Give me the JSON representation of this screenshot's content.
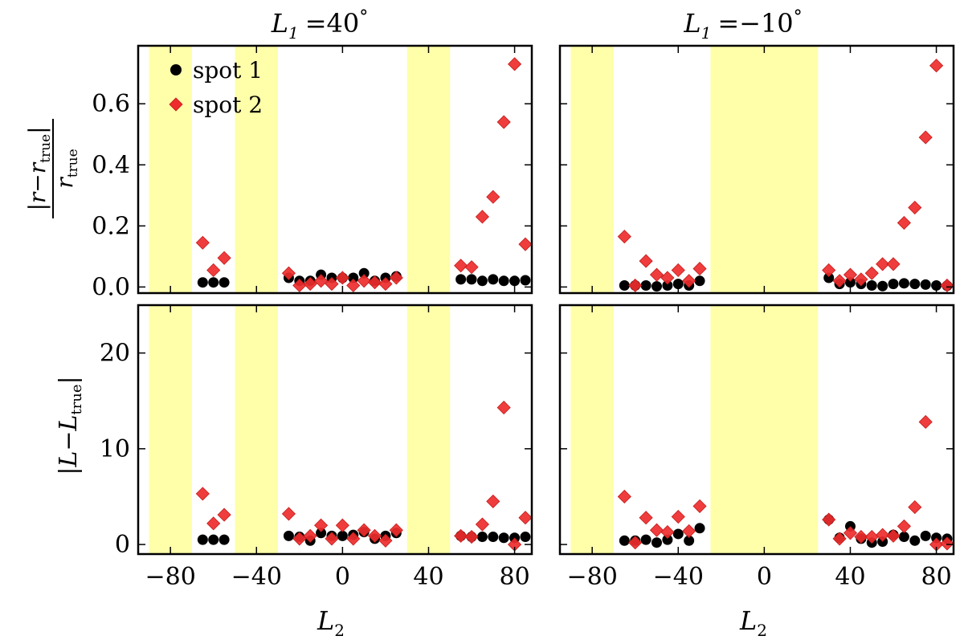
{
  "figure": {
    "xlabel_main": "L",
    "xlabel_sub": "2"
  },
  "columns": [
    {
      "title_var": "L",
      "title_sub": "1",
      "title_eq": "=",
      "title_val": "40",
      "title_deg": "°"
    },
    {
      "title_var": "L",
      "title_sub": "1",
      "title_eq": "=",
      "title_val": "−10",
      "title_deg": "°"
    }
  ],
  "row_labels": [
    {
      "num_main": "r",
      "num_minus": "−",
      "num_var": "r",
      "num_sub": "true",
      "den_var": "r",
      "den_sub": "true"
    },
    {
      "main": "L",
      "minus": "−",
      "var": "L",
      "sub": "true"
    }
  ],
  "legend": {
    "items": [
      {
        "label": "spot 1",
        "color": "#000000",
        "marker": "circle"
      },
      {
        "label": "spot 2",
        "color": "#ee2c2c",
        "marker": "diamond"
      }
    ]
  },
  "colors": {
    "band": "#ffffaa",
    "spot1": "#000000",
    "spot2": "#ee2c2c",
    "axis": "#000000"
  },
  "chart_data": [
    {
      "type": "scatter",
      "panel": "top-left",
      "title": "L1 = 40°",
      "xlabel": "",
      "ylabel": "|r − r_true| / r_true",
      "xlim": [
        -95,
        88
      ],
      "ylim": [
        -0.02,
        0.79
      ],
      "xticks": [
        -80,
        -40,
        0,
        40,
        80
      ],
      "xtick_labels": [],
      "yticks": [
        0.0,
        0.2,
        0.4,
        0.6
      ],
      "ytick_labels": [
        "0.0",
        "0.2",
        "0.4",
        "0.6"
      ],
      "shaded_bands": [
        [
          -90,
          -70
        ],
        [
          -50,
          -30
        ],
        [
          30,
          50
        ]
      ],
      "series": [
        {
          "name": "spot 1",
          "x": [
            -65,
            -60,
            -55,
            -25,
            -20,
            -15,
            -10,
            -5,
            0,
            5,
            10,
            15,
            20,
            25,
            55,
            60,
            65,
            70,
            75,
            80,
            85
          ],
          "y": [
            0.015,
            0.015,
            0.015,
            0.03,
            0.02,
            0.02,
            0.04,
            0.03,
            0.03,
            0.03,
            0.045,
            0.02,
            0.03,
            0.035,
            0.025,
            0.025,
            0.02,
            0.025,
            0.02,
            0.02,
            0.022
          ]
        },
        {
          "name": "spot 2",
          "x": [
            -65,
            -60,
            -55,
            -25,
            -20,
            -15,
            -10,
            -5,
            0,
            5,
            10,
            15,
            20,
            25,
            55,
            60,
            65,
            70,
            75,
            80,
            85
          ],
          "y": [
            0.145,
            0.055,
            0.095,
            0.045,
            0.005,
            0.01,
            0.02,
            0.01,
            0.03,
            0.005,
            0.02,
            0.015,
            0.01,
            0.03,
            0.07,
            0.065,
            0.23,
            0.295,
            0.54,
            0.73,
            0.14
          ]
        }
      ]
    },
    {
      "type": "scatter",
      "panel": "top-right",
      "title": "L1 = −10°",
      "xlabel": "",
      "ylabel": "",
      "xlim": [
        -95,
        88
      ],
      "ylim": [
        -0.02,
        0.79
      ],
      "xticks": [
        -80,
        -40,
        0,
        40,
        80
      ],
      "xtick_labels": [],
      "yticks": [
        0.0,
        0.2,
        0.4,
        0.6
      ],
      "ytick_labels": [],
      "shaded_bands": [
        [
          -90,
          -70
        ],
        [
          -25,
          25
        ]
      ],
      "series": [
        {
          "name": "spot 1",
          "x": [
            -65,
            -60,
            -55,
            -50,
            -45,
            -40,
            -35,
            -30,
            30,
            35,
            40,
            45,
            50,
            55,
            60,
            65,
            70,
            75,
            80,
            85
          ],
          "y": [
            0.005,
            0.005,
            0.005,
            0.002,
            0.005,
            0.01,
            0.005,
            0.02,
            0.03,
            0.01,
            0.015,
            0.01,
            0.005,
            0.003,
            0.01,
            0.012,
            0.01,
            0.008,
            0.005,
            0.004
          ]
        },
        {
          "name": "spot 2",
          "x": [
            -65,
            -60,
            -55,
            -50,
            -45,
            -40,
            -35,
            -30,
            30,
            35,
            40,
            45,
            50,
            55,
            60,
            65,
            70,
            75,
            80,
            85
          ],
          "y": [
            0.165,
            0.005,
            0.085,
            0.04,
            0.03,
            0.055,
            0.02,
            0.06,
            0.055,
            0.02,
            0.04,
            0.025,
            0.045,
            0.075,
            0.075,
            0.21,
            0.26,
            0.49,
            0.725,
            0.005
          ]
        }
      ]
    },
    {
      "type": "scatter",
      "panel": "bottom-left",
      "title": "",
      "xlabel": "L2",
      "ylabel": "|L − L_true|",
      "xlim": [
        -95,
        88
      ],
      "ylim": [
        -1,
        25
      ],
      "xticks": [
        -80,
        -40,
        0,
        40,
        80
      ],
      "xtick_labels": [
        "−80",
        "−40",
        "0",
        "40",
        "80"
      ],
      "yticks": [
        0,
        10,
        20
      ],
      "ytick_labels": [
        "0",
        "10",
        "20"
      ],
      "shaded_bands": [
        [
          -90,
          -70
        ],
        [
          -50,
          -30
        ],
        [
          30,
          50
        ]
      ],
      "series": [
        {
          "name": "spot 1",
          "x": [
            -65,
            -60,
            -55,
            -25,
            -20,
            -15,
            -10,
            -5,
            0,
            5,
            10,
            15,
            20,
            25,
            55,
            60,
            65,
            70,
            75,
            80,
            85
          ],
          "y": [
            0.5,
            0.5,
            0.5,
            0.9,
            0.8,
            0.4,
            1.2,
            0.9,
            0.9,
            1.0,
            1.3,
            0.6,
            0.9,
            1.2,
            0.9,
            0.8,
            0.8,
            0.8,
            0.7,
            0.7,
            0.8
          ]
        },
        {
          "name": "spot 2",
          "x": [
            -65,
            -60,
            -55,
            -25,
            -20,
            -15,
            -10,
            -5,
            0,
            5,
            10,
            15,
            20,
            25,
            55,
            60,
            65,
            70,
            75,
            80,
            85
          ],
          "y": [
            5.3,
            2.2,
            3.1,
            3.2,
            0.6,
            0.9,
            2.0,
            0.6,
            2.0,
            0.6,
            1.5,
            0.9,
            0.4,
            1.5,
            0.9,
            0.8,
            2.1,
            4.5,
            14.3,
            0.0,
            2.8
          ]
        }
      ]
    },
    {
      "type": "scatter",
      "panel": "bottom-right",
      "title": "",
      "xlabel": "L2",
      "ylabel": "",
      "xlim": [
        -95,
        88
      ],
      "ylim": [
        -1,
        25
      ],
      "xticks": [
        -80,
        -40,
        0,
        40,
        80
      ],
      "xtick_labels": [
        "−80",
        "−40",
        "0",
        "40",
        "80"
      ],
      "yticks": [
        0,
        10,
        20
      ],
      "ytick_labels": [],
      "shaded_bands": [
        [
          -90,
          -70
        ],
        [
          -25,
          25
        ]
      ],
      "series": [
        {
          "name": "spot 1",
          "x": [
            -65,
            -60,
            -55,
            -50,
            -45,
            -40,
            -35,
            -30,
            30,
            35,
            40,
            45,
            50,
            55,
            60,
            65,
            70,
            75,
            80,
            85
          ],
          "y": [
            0.4,
            0.4,
            0.5,
            0.2,
            0.5,
            1.1,
            0.4,
            1.7,
            2.6,
            0.7,
            1.9,
            0.6,
            0.2,
            0.3,
            1.0,
            0.8,
            0.4,
            0.9,
            0.7,
            0.6
          ]
        },
        {
          "name": "spot 2",
          "x": [
            -65,
            -60,
            -55,
            -50,
            -45,
            -40,
            -35,
            -30,
            30,
            35,
            40,
            45,
            50,
            55,
            60,
            65,
            70,
            75,
            80,
            85
          ],
          "y": [
            5.0,
            0.2,
            2.8,
            1.5,
            1.3,
            2.9,
            1.4,
            4.0,
            2.6,
            0.6,
            1.2,
            0.8,
            0.8,
            1.0,
            0.9,
            1.9,
            3.9,
            12.8,
            0.0,
            0.1
          ]
        }
      ]
    }
  ]
}
